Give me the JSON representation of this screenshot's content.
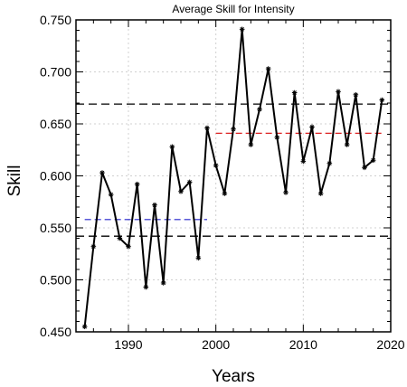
{
  "chart_data": {
    "type": "line",
    "title": "Average Skill for Intensity",
    "xlabel": "Years",
    "ylabel": "Skill",
    "xlim": [
      1984,
      2020
    ],
    "ylim": [
      0.45,
      0.75
    ],
    "xticks": [
      "1990",
      "2000",
      "2010",
      "2020"
    ],
    "yticks": [
      "0.450",
      "0.500",
      "0.550",
      "0.600",
      "0.650",
      "0.700",
      "0.750"
    ],
    "grid": true,
    "series": [
      {
        "color": "#000000",
        "marker": "asterisk",
        "x": [
          1985,
          1986,
          1987,
          1988,
          1989,
          1990,
          1991,
          1992,
          1993,
          1994,
          1995,
          1996,
          1997,
          1998,
          1999,
          2000,
          2001,
          2002,
          2003,
          2004,
          2005,
          2006,
          2007,
          2008,
          2009,
          2010,
          2011,
          2012,
          2013,
          2014,
          2015,
          2016,
          2017,
          2018,
          2019
        ],
        "y": [
          0.455,
          0.532,
          0.603,
          0.582,
          0.54,
          0.532,
          0.592,
          0.493,
          0.572,
          0.497,
          0.628,
          0.585,
          0.594,
          0.521,
          0.646,
          0.61,
          0.583,
          0.645,
          0.741,
          0.63,
          0.664,
          0.703,
          0.637,
          0.584,
          0.68,
          0.614,
          0.647,
          0.583,
          0.612,
          0.681,
          0.63,
          0.678,
          0.608,
          0.615,
          0.673
        ]
      }
    ],
    "reference_lines": [
      {
        "y": 0.669,
        "x_range": [
          1984,
          2020
        ],
        "color": "#000000",
        "style": "dashed"
      },
      {
        "y": 0.542,
        "x_range": [
          1984,
          2020
        ],
        "color": "#000000",
        "style": "dashed"
      },
      {
        "y": 0.558,
        "x_range": [
          1985,
          1999
        ],
        "color": "#2222cc",
        "style": "dashed"
      },
      {
        "y": 0.641,
        "x_range": [
          2000,
          2019
        ],
        "color": "#dd2222",
        "style": "dashed"
      }
    ]
  }
}
